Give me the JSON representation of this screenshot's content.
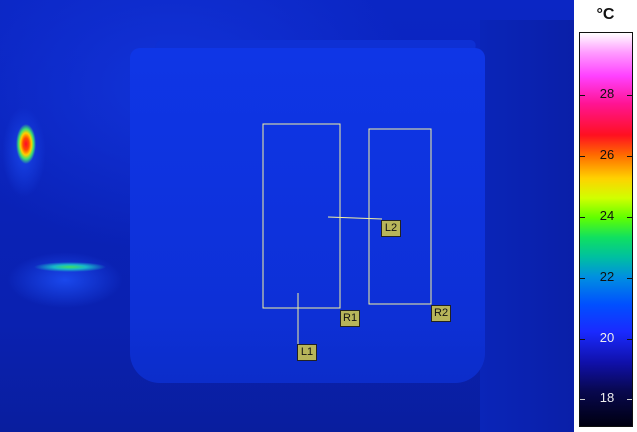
{
  "scale": {
    "unit": "°C",
    "ticks": [
      "28",
      "26",
      "24",
      "22",
      "20",
      "18"
    ]
  },
  "measurement_tools": [
    {
      "id": "R1",
      "type": "rectangle"
    },
    {
      "id": "R2",
      "type": "rectangle"
    },
    {
      "id": "L1",
      "type": "line"
    },
    {
      "id": "L2",
      "type": "line"
    }
  ],
  "colors": {
    "overlay_outline": "#f4f2a0",
    "label_background": "#b7b55a",
    "background": "#0a1fa8"
  }
}
